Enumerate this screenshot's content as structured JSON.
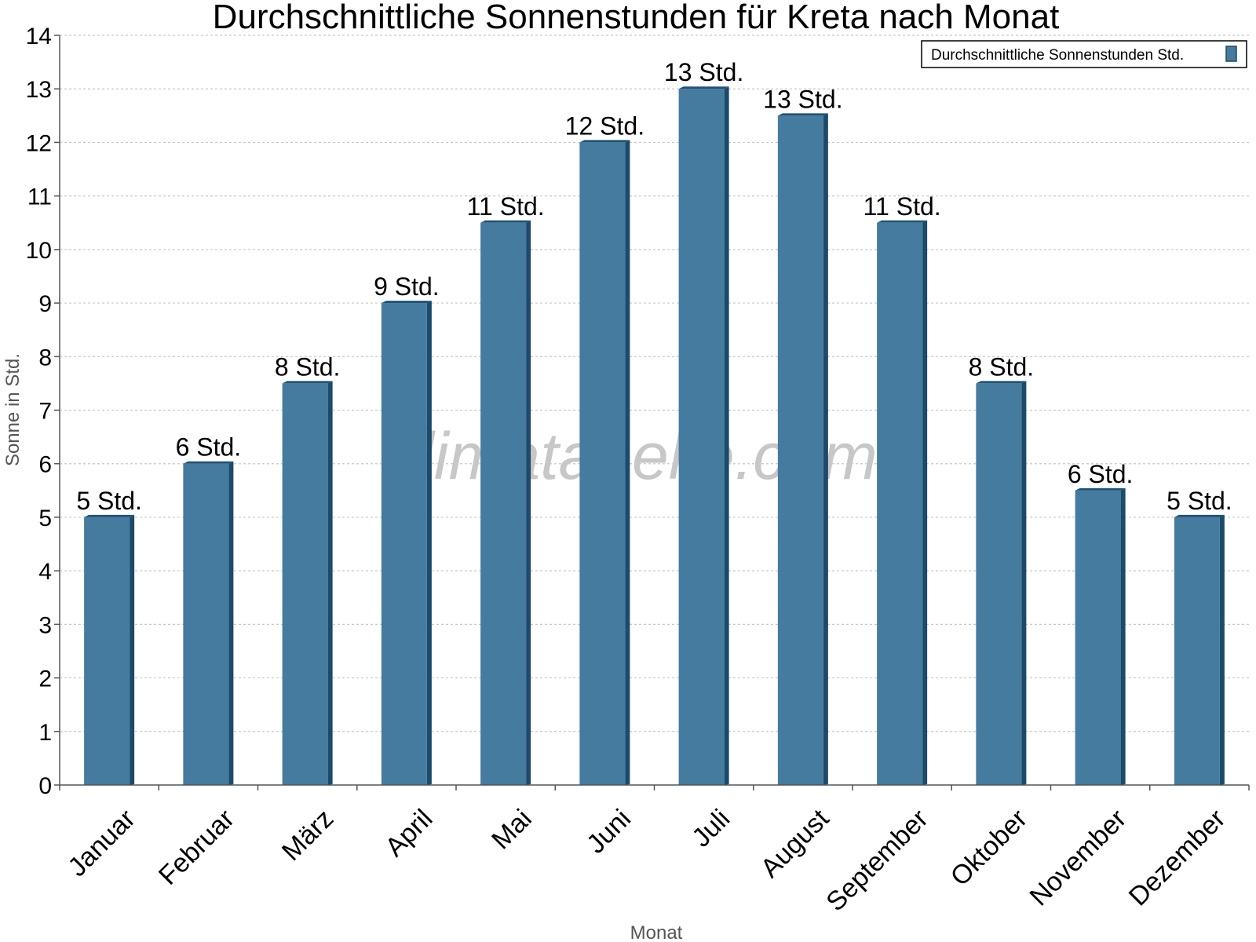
{
  "chart_data": {
    "type": "bar",
    "title": "Durchschnittliche Sonnenstunden für Kreta nach Monat",
    "xlabel": "Monat",
    "ylabel": "Sonne in Std.",
    "categories": [
      "Januar",
      "Februar",
      "März",
      "April",
      "Mai",
      "Juni",
      "Juli",
      "August",
      "September",
      "Oktober",
      "November",
      "Dezember"
    ],
    "series": [
      {
        "name": "Durchschnittliche Sonnenstunden Std.",
        "values": [
          5,
          6,
          7.5,
          9,
          10.5,
          12,
          13,
          12.5,
          10.5,
          7.5,
          5.5,
          5
        ],
        "labels": [
          "5 Std.",
          "6 Std.",
          "8 Std.",
          "9 Std.",
          "11 Std.",
          "12 Std.",
          "13 Std.",
          "13 Std.",
          "11 Std.",
          "8 Std.",
          "6 Std.",
          "5 Std."
        ],
        "color": "#447b9f"
      }
    ],
    "ylim": [
      0,
      14
    ],
    "yticks": [
      0,
      1,
      2,
      3,
      4,
      5,
      6,
      7,
      8,
      9,
      10,
      11,
      12,
      13,
      14
    ],
    "grid": true,
    "legend_position": "top-right",
    "watermark": "klimatabelle.com"
  },
  "colors": {
    "bar_front": "#447b9f",
    "bar_side": "#1b4a6b",
    "bar_top": "#1e5275",
    "grid": "#c8c8c8",
    "axis": "#555555"
  }
}
